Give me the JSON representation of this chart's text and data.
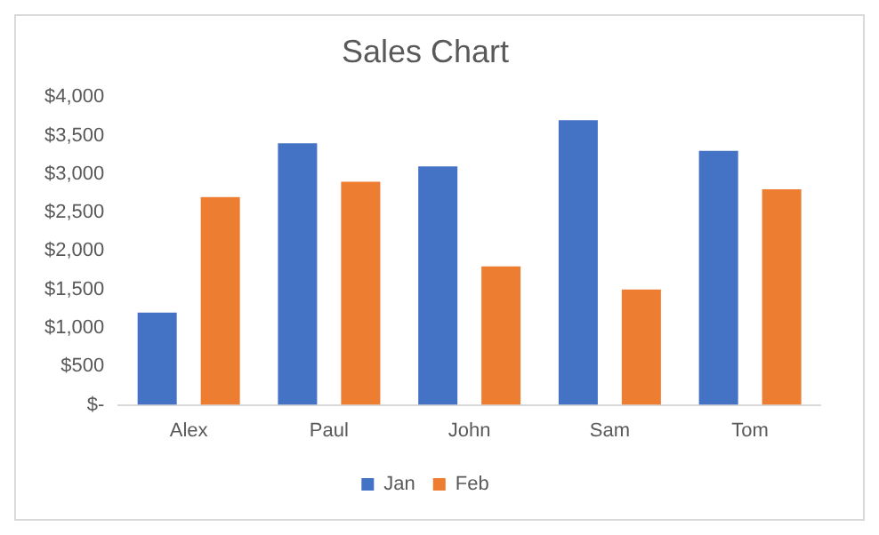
{
  "chart_data": {
    "type": "bar",
    "title": "Sales Chart",
    "categories": [
      "Alex",
      "Paul",
      "John",
      "Sam",
      "Tom"
    ],
    "series": [
      {
        "name": "Jan",
        "color": "#4472c4",
        "values": [
          1200,
          3400,
          3100,
          3700,
          3300
        ]
      },
      {
        "name": "Feb",
        "color": "#ed7d31",
        "values": [
          2700,
          2900,
          1800,
          1500,
          2800
        ]
      }
    ],
    "ylim": [
      0,
      4000
    ],
    "yticks": [
      {
        "value": 0,
        "label": "$-"
      },
      {
        "value": 500,
        "label": "$500"
      },
      {
        "value": 1000,
        "label": "$1,000"
      },
      {
        "value": 1500,
        "label": "$1,500"
      },
      {
        "value": 2000,
        "label": "$2,000"
      },
      {
        "value": 2500,
        "label": "$2,500"
      },
      {
        "value": 3000,
        "label": "$3,000"
      },
      {
        "value": 3500,
        "label": "$3,500"
      },
      {
        "value": 4000,
        "label": "$4,000"
      }
    ],
    "grid": false,
    "legend": "bottom"
  }
}
